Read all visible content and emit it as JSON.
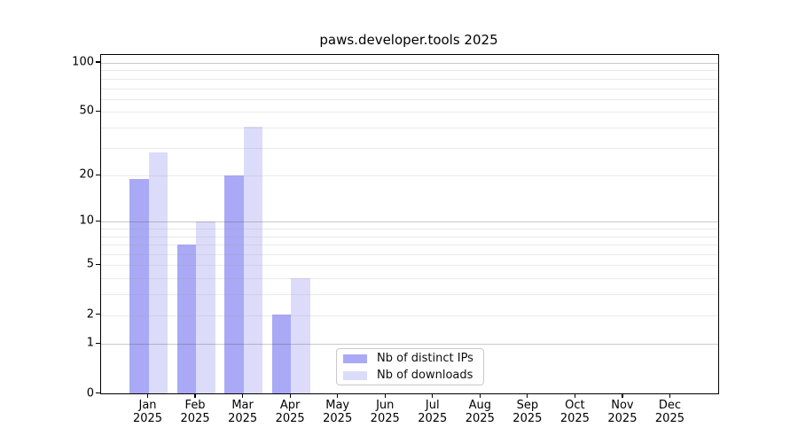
{
  "chart_data": {
    "type": "bar",
    "title": "paws.developer.tools 2025",
    "categories": [
      "Jan",
      "Feb",
      "Mar",
      "Apr",
      "May",
      "Jun",
      "Jul",
      "Aug",
      "Sep",
      "Oct",
      "Nov",
      "Dec"
    ],
    "category_year": "2025",
    "series": [
      {
        "name": "Nb of distinct IPs",
        "color": "#a9a9f6",
        "values": [
          19,
          7,
          20,
          2,
          0,
          0,
          0,
          0,
          0,
          0,
          0,
          0
        ]
      },
      {
        "name": "Nb of downloads",
        "color": "#dcdcfa",
        "values": [
          28,
          10,
          40,
          4,
          0,
          0,
          0,
          0,
          0,
          0,
          0,
          0
        ]
      }
    ],
    "yscale": "log1p",
    "ylim": [
      0,
      111
    ],
    "yticks": [
      0,
      1,
      2,
      5,
      10,
      20,
      50,
      100
    ],
    "ytick_labels": [
      "0",
      "1",
      "2",
      "5",
      "10",
      "20",
      "50",
      "100"
    ],
    "major_gridline_values": [
      1,
      10,
      100
    ],
    "minor_gridline_values": [
      2,
      3,
      4,
      5,
      6,
      7,
      8,
      9,
      20,
      30,
      40,
      50,
      60,
      70,
      80,
      90
    ],
    "grid": true,
    "legend_position": "lower center inside plot"
  }
}
